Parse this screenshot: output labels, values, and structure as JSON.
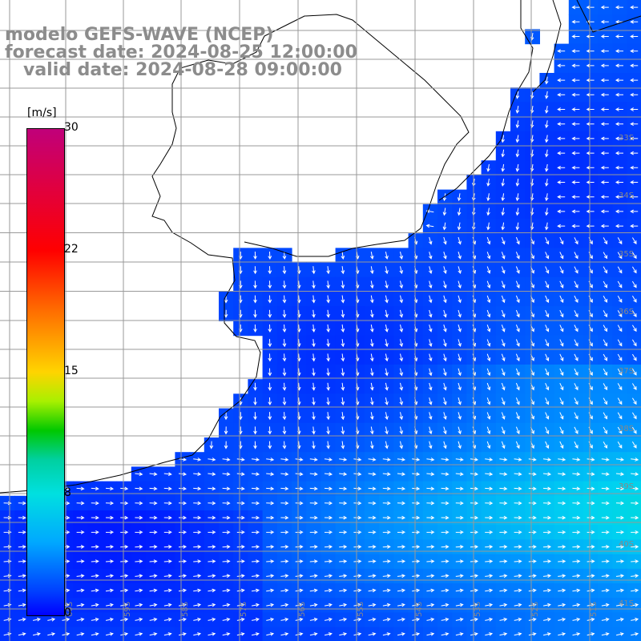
{
  "header": {
    "line1": "modelo GEFS-WAVE (NCEP)",
    "line2": "forecast date: 2024-08-25 12:00:00",
    "line3": "   valid date: 2024-08-28 09:00:00"
  },
  "colorbar": {
    "unit": "[m/s]",
    "ticks": [
      "30",
      "22",
      "15",
      "8",
      "0"
    ]
  },
  "grid": {
    "lon_labels": [
      "60S",
      "59S",
      "58S",
      "57S",
      "56S",
      "55S",
      "54S",
      "53S",
      "52S",
      "51S"
    ],
    "lat_labels": [
      "33S",
      "34S",
      "35S",
      "36S",
      "37S",
      "38S",
      "39S",
      "40S",
      "41S"
    ]
  },
  "colors": {
    "land": "#ffffff",
    "gridline": "#999999",
    "arrow": "#ffffff",
    "title_text": "#8c8c8c"
  }
}
